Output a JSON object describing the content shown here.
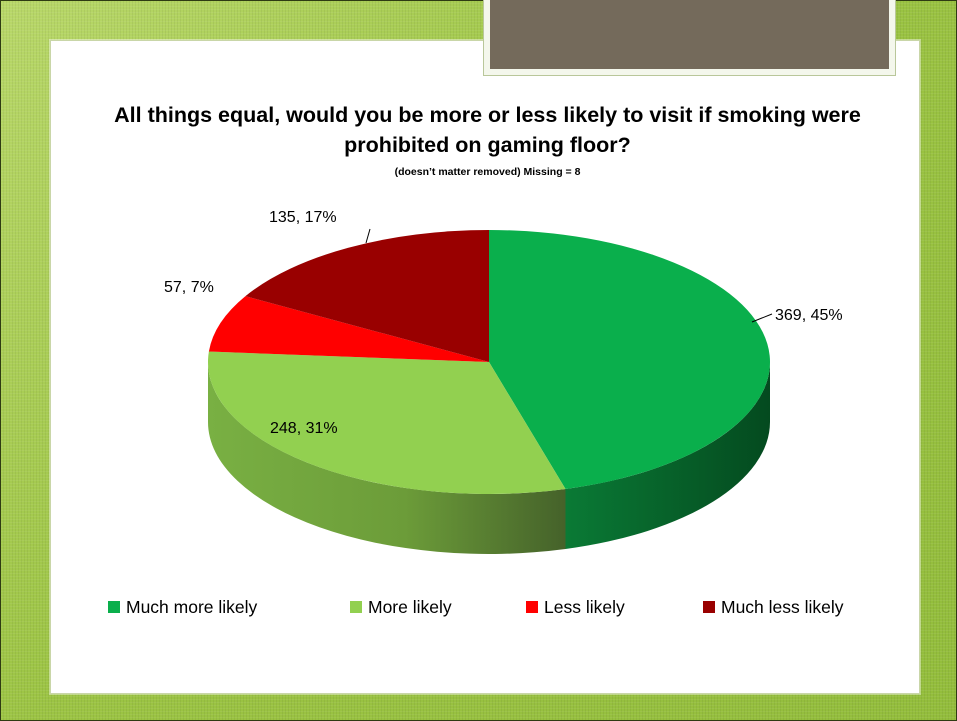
{
  "chart_data": {
    "type": "pie",
    "title": "All things equal, would you be more or less likely to visit if smoking were prohibited on gaming floor?",
    "subtitle": "(doesn’t matter removed)  Missing = 8",
    "slices": [
      {
        "name": "Much more likely",
        "value": 369,
        "percent_label": "45%",
        "label": "369, 45%",
        "color": "#0aaf4c"
      },
      {
        "name": "More likely",
        "value": 248,
        "percent_label": "31%",
        "label": "248, 31%",
        "color": "#92d050"
      },
      {
        "name": "Less likely",
        "value": 57,
        "percent_label": "7%",
        "label": "57, 7%",
        "color": "#ff0000"
      },
      {
        "name": "Much less likely",
        "value": 135,
        "percent_label": "17%",
        "label": "135, 17%",
        "color": "#990000"
      }
    ],
    "legend": [
      "Much more likely",
      "More likely",
      "Less likely",
      "Much less likely"
    ],
    "legend_position": "bottom",
    "style": "3d-pie"
  },
  "colors": {
    "background": "#a3c94f",
    "card": "#ffffff",
    "header_tab": "#746a5b"
  }
}
